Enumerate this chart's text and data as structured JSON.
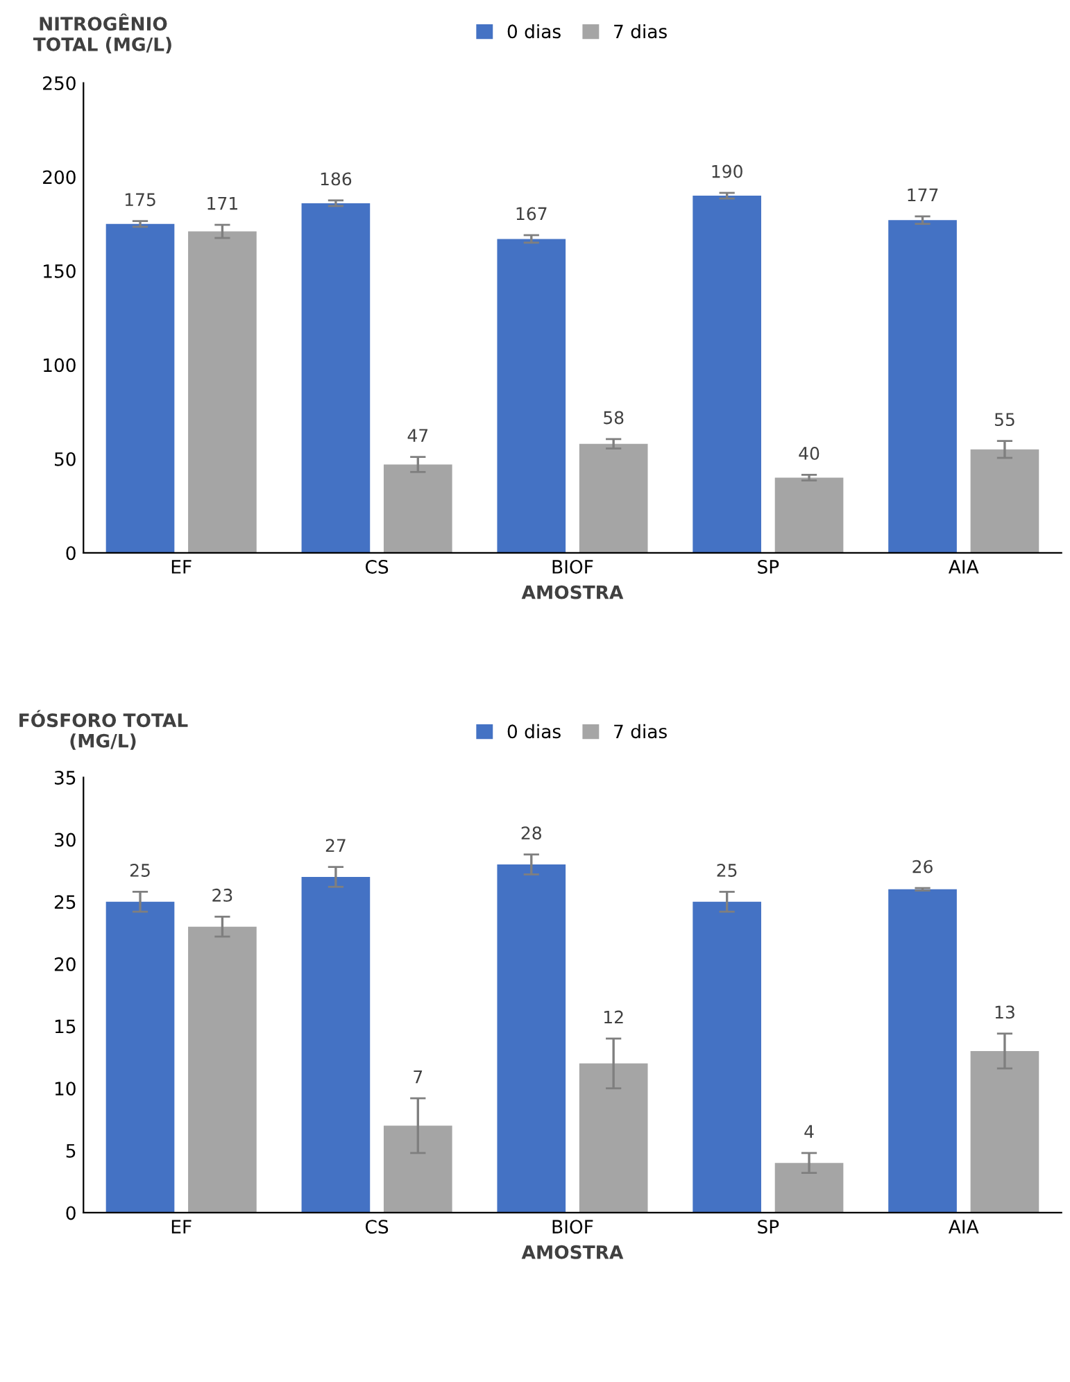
{
  "chart_data": [
    {
      "type": "bar",
      "ylabel": "NITROGÊNIO\nTOTAL (MG/L)",
      "xlabel": "AMOSTRA",
      "categories": [
        "EF",
        "CS",
        "BIOF",
        "SP",
        "AIA"
      ],
      "series": [
        {
          "name": "0 dias",
          "color": "#4472c4",
          "values": [
            175,
            186,
            167,
            190,
            177
          ],
          "errors": [
            1.5,
            1.5,
            2,
            1.5,
            2
          ]
        },
        {
          "name": "7 dias",
          "color": "#a5a5a5",
          "values": [
            171,
            47,
            58,
            40,
            55
          ],
          "errors": [
            3.5,
            4,
            2.5,
            1.5,
            4.5
          ]
        }
      ],
      "ylim": [
        0,
        250
      ],
      "yticks": [
        0,
        50,
        100,
        150,
        200,
        250
      ],
      "grid": false,
      "legend": "top",
      "data_labels": true
    },
    {
      "type": "bar",
      "ylabel": "FÓSFORO TOTAL\n(MG/L)",
      "xlabel": "AMOSTRA",
      "categories": [
        "EF",
        "CS",
        "BIOF",
        "SP",
        "AIA"
      ],
      "series": [
        {
          "name": "0 dias",
          "color": "#4472c4",
          "values": [
            25,
            27,
            28,
            25,
            26
          ],
          "errors": [
            0.8,
            0.8,
            0.8,
            0.8,
            0.1
          ]
        },
        {
          "name": "7 dias",
          "color": "#a5a5a5",
          "values": [
            23,
            7,
            12,
            4,
            13
          ],
          "errors": [
            0.8,
            2.2,
            2,
            0.8,
            1.4
          ]
        }
      ],
      "ylim": [
        0,
        35
      ],
      "yticks": [
        0,
        5,
        10,
        15,
        20,
        25,
        30,
        35
      ],
      "grid": false,
      "legend": "top",
      "data_labels": true
    }
  ]
}
